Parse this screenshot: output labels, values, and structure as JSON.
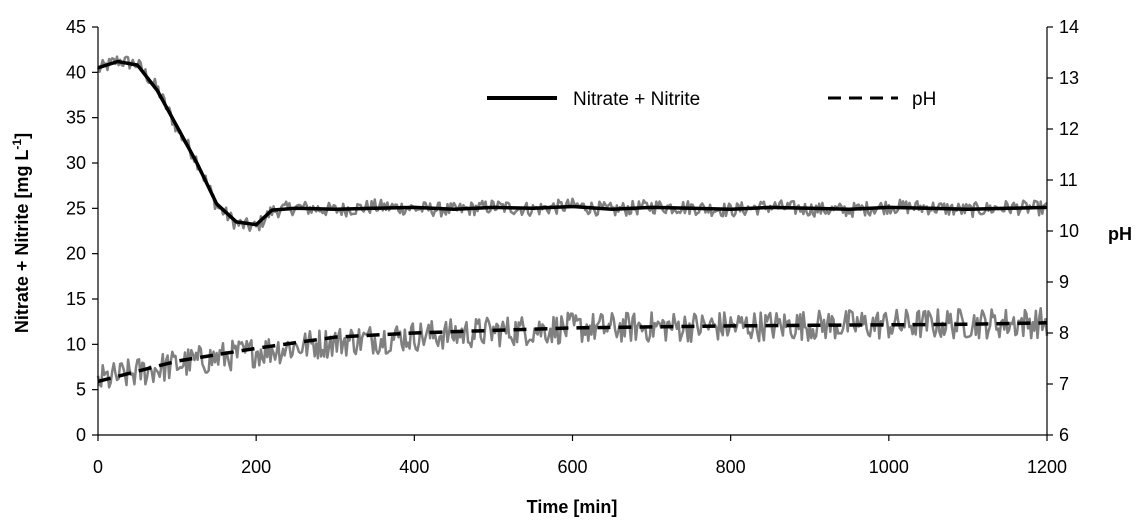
{
  "chart_data": {
    "type": "line",
    "title": "",
    "xlabel": "Time [min]",
    "ylabel_left": "Nitrate + Nitrite [mg L",
    "ylabel_left_superscript": "-1",
    "ylabel_left_suffix": "]",
    "ylabel_right": "pH",
    "xlim": [
      0,
      1200
    ],
    "ylim_left": [
      0,
      45
    ],
    "ylim_right": [
      6,
      14
    ],
    "x_ticks": [
      "0",
      "200",
      "400",
      "600",
      "800",
      "1000",
      "1200"
    ],
    "y_left_ticks": [
      "0",
      "5",
      "10",
      "15",
      "20",
      "25",
      "30",
      "35",
      "40",
      "45"
    ],
    "y_right_ticks": [
      "6",
      "7",
      "8",
      "9",
      "10",
      "11",
      "12",
      "13",
      "14"
    ],
    "grid": false,
    "legend_position": "top-right",
    "series": [
      {
        "name": "Nitrate + Nitrite",
        "axis": "left",
        "style": "solid",
        "color": "#000000",
        "x": [
          0,
          25,
          50,
          75,
          100,
          125,
          150,
          175,
          200,
          220,
          250,
          300,
          350,
          400,
          450,
          500,
          550,
          600,
          650,
          700,
          750,
          800,
          850,
          900,
          950,
          1000,
          1050,
          1100,
          1150,
          1200
        ],
        "values": [
          40.5,
          41.2,
          40.8,
          38.0,
          34.0,
          30.0,
          25.5,
          23.5,
          23.2,
          24.8,
          25.0,
          24.9,
          25.0,
          25.1,
          24.9,
          25.1,
          25.0,
          25.2,
          24.9,
          25.1,
          25.0,
          24.9,
          25.1,
          25.0,
          24.9,
          25.1,
          25.0,
          24.9,
          25.0,
          25.1
        ]
      },
      {
        "name": "pH",
        "axis": "right",
        "style": "dashed",
        "color": "#000000",
        "x": [
          0,
          100,
          200,
          300,
          400,
          500,
          600,
          700,
          800,
          900,
          1000,
          1100,
          1200
        ],
        "values": [
          7.05,
          7.45,
          7.7,
          7.92,
          8.0,
          8.05,
          8.1,
          8.12,
          8.14,
          8.15,
          8.16,
          8.17,
          8.2
        ]
      }
    ],
    "raw_signals": [
      {
        "axis": "left",
        "color": "#808080",
        "x": [
          0,
          25,
          50,
          75,
          100,
          125,
          150,
          175,
          200,
          220,
          250,
          300,
          350,
          400,
          450,
          500,
          550,
          600,
          650,
          700,
          750,
          800,
          850,
          900,
          950,
          1000,
          1050,
          1100,
          1150,
          1200
        ],
        "values": [
          40.3,
          41.3,
          40.9,
          38.2,
          33.8,
          30.3,
          25.3,
          23.3,
          22.9,
          24.7,
          25.1,
          24.8,
          25.2,
          25.0,
          24.8,
          25.2,
          24.9,
          25.3,
          24.8,
          25.2,
          25.1,
          24.8,
          25.2,
          24.9,
          24.8,
          25.2,
          25.1,
          24.8,
          25.1,
          25.0
        ],
        "noise": 0.8
      },
      {
        "axis": "left",
        "color": "#808080",
        "x": [
          0,
          100,
          200,
          300,
          400,
          500,
          600,
          700,
          800,
          900,
          1000,
          1100,
          1200
        ],
        "values": [
          6.0,
          7.8,
          9.2,
          10.3,
          10.9,
          11.4,
          11.8,
          11.9,
          12.0,
          12.1,
          12.2,
          12.3,
          12.4
        ],
        "noise": 1.7
      }
    ]
  }
}
